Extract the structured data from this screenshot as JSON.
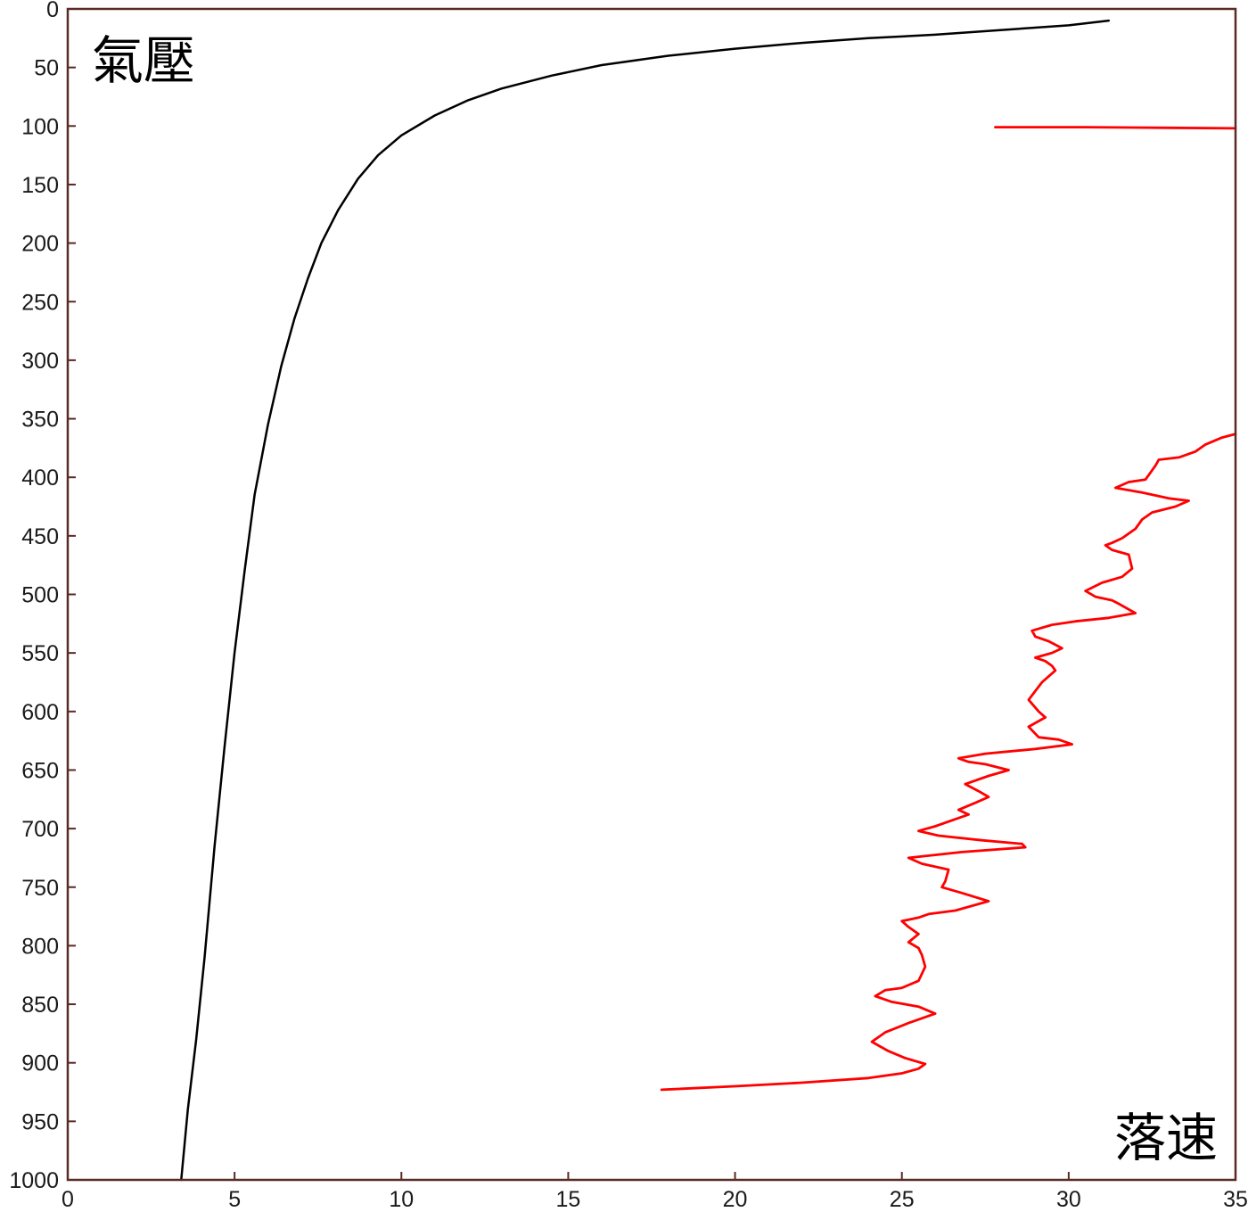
{
  "chart_data": {
    "type": "line",
    "title": "",
    "corner_labels": {
      "top_left": "氣壓",
      "bottom_right": "落速"
    },
    "xlim": [
      0,
      35
    ],
    "ylim": [
      1000,
      0
    ],
    "y_inverted": true,
    "grid": false,
    "x_ticks": [
      0,
      5,
      10,
      15,
      20,
      25,
      30,
      35
    ],
    "x_tick_labels": [
      "0",
      "5",
      "10",
      "15",
      "20",
      "25",
      "30",
      "35"
    ],
    "y_ticks": [
      0,
      50,
      100,
      150,
      200,
      250,
      300,
      350,
      400,
      450,
      500,
      550,
      600,
      650,
      700,
      750,
      800,
      850,
      900,
      950,
      1000
    ],
    "y_tick_labels": [
      "0",
      "50",
      "100",
      "150",
      "200",
      "250",
      "300",
      "350",
      "400",
      "450",
      "500",
      "550",
      "600",
      "650",
      "700",
      "750",
      "800",
      "850",
      "900",
      "950",
      "1000"
    ],
    "series": [
      {
        "color": "#000000",
        "points": [
          [
            31.2,
            10
          ],
          [
            30.0,
            14
          ],
          [
            28.0,
            18
          ],
          [
            26.0,
            22
          ],
          [
            24.0,
            25
          ],
          [
            22.0,
            29
          ],
          [
            20.0,
            34
          ],
          [
            18.0,
            40
          ],
          [
            16.0,
            48
          ],
          [
            14.5,
            57
          ],
          [
            13.0,
            68
          ],
          [
            12.0,
            78
          ],
          [
            11.0,
            91
          ],
          [
            10.0,
            108
          ],
          [
            9.3,
            125
          ],
          [
            8.7,
            145
          ],
          [
            8.1,
            172
          ],
          [
            7.6,
            200
          ],
          [
            7.2,
            230
          ],
          [
            6.8,
            264
          ],
          [
            6.4,
            305
          ],
          [
            6.0,
            355
          ],
          [
            5.6,
            415
          ],
          [
            5.3,
            480
          ],
          [
            5.0,
            550
          ],
          [
            4.7,
            630
          ],
          [
            4.4,
            715
          ],
          [
            4.1,
            810
          ],
          [
            3.85,
            880
          ],
          [
            3.6,
            940
          ],
          [
            3.4,
            1000
          ]
        ]
      },
      {
        "color": "#ff0000",
        "points": [
          [
            27.8,
            101
          ],
          [
            30.5,
            101
          ],
          [
            33.0,
            101.5
          ],
          [
            35.0,
            102
          ]
        ]
      },
      {
        "color": "#ff0000",
        "points": [
          [
            35.0,
            363
          ],
          [
            34.6,
            366
          ],
          [
            34.1,
            372
          ],
          [
            33.8,
            378
          ],
          [
            33.3,
            383
          ],
          [
            32.7,
            385
          ],
          [
            32.6,
            390
          ],
          [
            32.4,
            398
          ],
          [
            32.3,
            402
          ],
          [
            31.8,
            404
          ],
          [
            31.4,
            409
          ],
          [
            31.8,
            411
          ],
          [
            32.2,
            413
          ],
          [
            33.0,
            418
          ],
          [
            33.6,
            420
          ],
          [
            33.2,
            425
          ],
          [
            32.5,
            430
          ],
          [
            32.2,
            436
          ],
          [
            32.0,
            444
          ],
          [
            31.6,
            452
          ],
          [
            31.3,
            456
          ],
          [
            31.1,
            458
          ],
          [
            31.3,
            462
          ],
          [
            31.8,
            466
          ],
          [
            31.9,
            478
          ],
          [
            31.6,
            485
          ],
          [
            31.0,
            490
          ],
          [
            30.5,
            497
          ],
          [
            30.8,
            502
          ],
          [
            31.3,
            505
          ],
          [
            31.5,
            508
          ],
          [
            32.0,
            516
          ],
          [
            31.2,
            520
          ],
          [
            30.2,
            523
          ],
          [
            29.5,
            526
          ],
          [
            28.9,
            531
          ],
          [
            29.0,
            536
          ],
          [
            29.4,
            540
          ],
          [
            29.8,
            546
          ],
          [
            29.5,
            550
          ],
          [
            29.0,
            554
          ],
          [
            29.3,
            557
          ],
          [
            29.5,
            561
          ],
          [
            29.6,
            565
          ],
          [
            29.2,
            575
          ],
          [
            28.8,
            590
          ],
          [
            29.1,
            600
          ],
          [
            29.3,
            605
          ],
          [
            28.8,
            613
          ],
          [
            29.1,
            622
          ],
          [
            29.7,
            624
          ],
          [
            30.1,
            628
          ],
          [
            29.0,
            632
          ],
          [
            27.5,
            636
          ],
          [
            26.7,
            640
          ],
          [
            27.0,
            643
          ],
          [
            27.5,
            645
          ],
          [
            28.2,
            650
          ],
          [
            27.6,
            655
          ],
          [
            26.9,
            662
          ],
          [
            27.3,
            668
          ],
          [
            27.6,
            673
          ],
          [
            27.2,
            678
          ],
          [
            26.7,
            684
          ],
          [
            27.0,
            688
          ],
          [
            26.6,
            692
          ],
          [
            26.0,
            698
          ],
          [
            25.5,
            702
          ],
          [
            26.1,
            706
          ],
          [
            27.4,
            710
          ],
          [
            28.6,
            713
          ],
          [
            28.7,
            716
          ],
          [
            26.8,
            720
          ],
          [
            25.2,
            725
          ],
          [
            25.6,
            730
          ],
          [
            26.4,
            735
          ],
          [
            26.3,
            745
          ],
          [
            26.2,
            750
          ],
          [
            26.8,
            755
          ],
          [
            27.6,
            762
          ],
          [
            26.6,
            770
          ],
          [
            25.8,
            773
          ],
          [
            25.5,
            776
          ],
          [
            25.0,
            779
          ],
          [
            25.2,
            784
          ],
          [
            25.5,
            790
          ],
          [
            25.2,
            797
          ],
          [
            25.5,
            802
          ],
          [
            25.6,
            808
          ],
          [
            25.7,
            818
          ],
          [
            25.5,
            830
          ],
          [
            25.0,
            836
          ],
          [
            24.5,
            838
          ],
          [
            24.2,
            843
          ],
          [
            24.7,
            848
          ],
          [
            25.5,
            852
          ],
          [
            26.0,
            858
          ],
          [
            25.2,
            866
          ],
          [
            24.5,
            874
          ],
          [
            24.1,
            882
          ],
          [
            24.6,
            890
          ],
          [
            25.1,
            896
          ],
          [
            25.7,
            901
          ],
          [
            25.5,
            905
          ],
          [
            25.0,
            909
          ],
          [
            24.0,
            913
          ],
          [
            22.0,
            917
          ],
          [
            20.0,
            920
          ],
          [
            17.8,
            923
          ]
        ]
      }
    ]
  }
}
